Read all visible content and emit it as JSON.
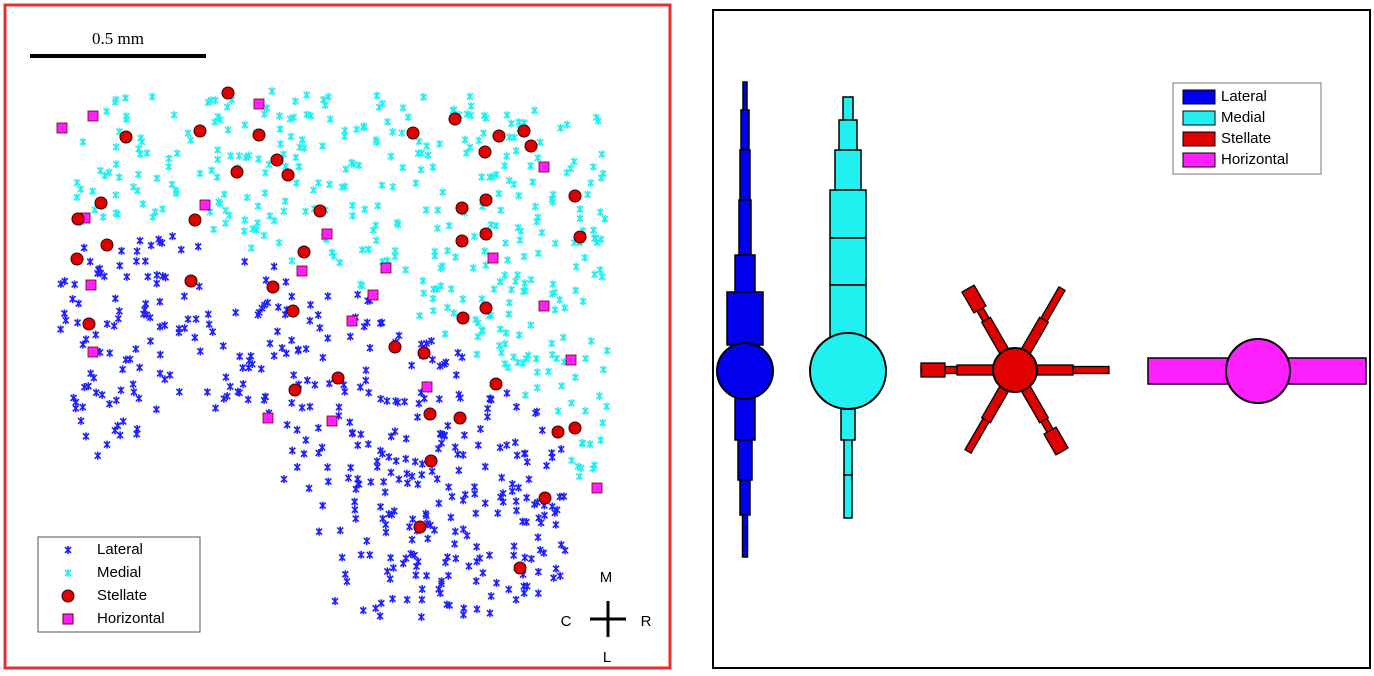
{
  "scale_bar": "0.5 mm",
  "legend": [
    "Lateral",
    "Medial",
    "Stellate",
    "Horizontal"
  ],
  "compass": {
    "up": "M",
    "left": "C",
    "right": "R",
    "down": "L"
  },
  "model_legend": [
    "Lateral",
    "Medial",
    "Stellate",
    "Horizontal"
  ]
}
